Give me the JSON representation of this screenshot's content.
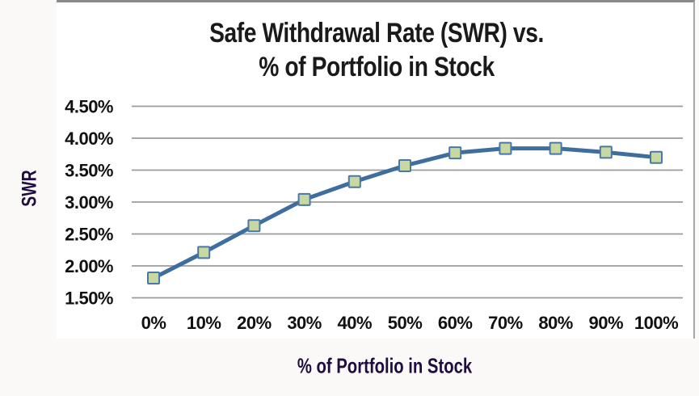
{
  "page": {
    "background_color": "#fbf9f7",
    "panel_color": "#ffffff"
  },
  "chart": {
    "title_line1": "Safe Withdrawal Rate (SWR) vs.",
    "title_line2": "% of Portfolio in Stock",
    "y_axis_title": "SWR",
    "x_axis_title": "% of Portfolio in Stock"
  },
  "chart_data": {
    "type": "line",
    "title": "Safe Withdrawal Rate (SWR) vs. % of Portfolio in Stock",
    "xlabel": "% of Portfolio in Stock",
    "ylabel": "SWR",
    "categories": [
      "0%",
      "10%",
      "20%",
      "30%",
      "40%",
      "50%",
      "60%",
      "70%",
      "80%",
      "90%",
      "100%"
    ],
    "values": [
      1.81,
      2.21,
      2.63,
      3.04,
      3.32,
      3.57,
      3.77,
      3.84,
      3.84,
      3.78,
      3.7
    ],
    "value_unit": "%",
    "ylim": [
      1.5,
      4.5
    ],
    "ytick_step": 0.5,
    "ytick_labels": [
      "1.50%",
      "2.00%",
      "2.50%",
      "3.00%",
      "3.50%",
      "4.00%",
      "4.50%"
    ],
    "grid": "horizontal-only",
    "legend": "none",
    "style": {
      "line_color": "#3d6e9e",
      "line_width": 5,
      "marker_shape": "square",
      "marker_size": 14,
      "marker_fill": "#c9d7a2",
      "marker_border": "#4878a8",
      "gridline_color": "#9b9b9b",
      "gridline_width": 1.8,
      "tick_label_color": "#111111",
      "axis_title_color": "#200d40",
      "title_color": "#1a1a1a"
    }
  }
}
